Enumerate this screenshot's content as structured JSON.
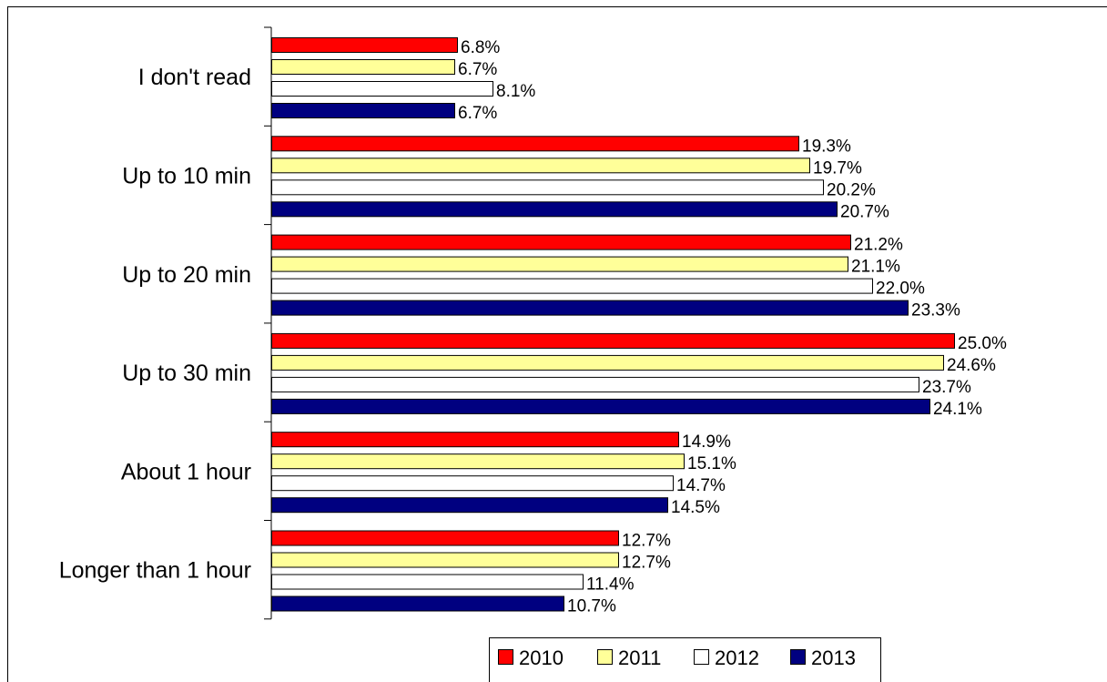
{
  "chart_data": {
    "type": "bar",
    "orientation": "horizontal",
    "title": "",
    "xlabel": "",
    "ylabel": "",
    "xlim": [
      0,
      27
    ],
    "grid": false,
    "legend_position": "bottom",
    "categories": [
      "I don't read",
      "Up to 10 min",
      "Up to 20 min",
      "Up to 30 min",
      "About 1 hour",
      "Longer than 1 hour"
    ],
    "series": [
      {
        "name": "2010",
        "color": "#ff0000",
        "values": [
          6.8,
          19.3,
          21.2,
          25.0,
          14.9,
          12.7
        ],
        "labels": [
          "6.8%",
          "19.3%",
          "21.2%",
          "25.0%",
          "14.9%",
          "12.7%"
        ]
      },
      {
        "name": "2011",
        "color": "#ffff99",
        "values": [
          6.7,
          19.7,
          21.1,
          24.6,
          15.1,
          12.7
        ],
        "labels": [
          "6.7%",
          "19.7%",
          "21.1%",
          "24.6%",
          "15.1%",
          "12.7%"
        ]
      },
      {
        "name": "2012",
        "color": "#ffffff",
        "values": [
          8.1,
          20.2,
          22.0,
          23.7,
          14.7,
          11.4
        ],
        "labels": [
          "8.1%",
          "20.2%",
          "22.0%",
          "23.7%",
          "14.7%",
          "11.4%"
        ]
      },
      {
        "name": "2013",
        "color": "#000080",
        "values": [
          6.7,
          20.7,
          23.3,
          24.1,
          14.5,
          10.7
        ],
        "labels": [
          "6.7%",
          "20.7%",
          "23.3%",
          "24.1%",
          "14.5%",
          "10.7%"
        ]
      }
    ]
  }
}
